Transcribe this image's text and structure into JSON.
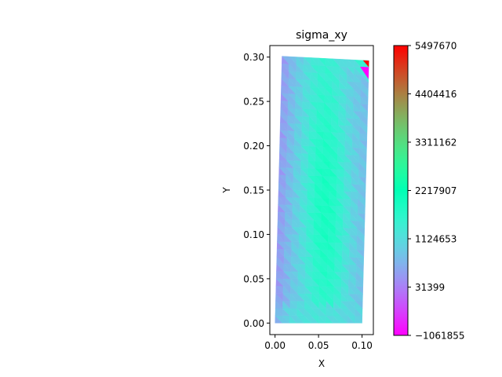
{
  "chart_data": {
    "type": "heatmap",
    "title": "sigma_xy",
    "xlabel": "X",
    "ylabel": "Y",
    "xlim": [
      -0.006,
      0.113
    ],
    "ylim": [
      -0.013,
      0.313
    ],
    "x_ticks": [
      0.0,
      0.05,
      0.1
    ],
    "x_tick_labels": [
      "0.00",
      "0.05",
      "0.10"
    ],
    "y_ticks": [
      0.0,
      0.05,
      0.1,
      0.15,
      0.2,
      0.25,
      0.3
    ],
    "y_tick_labels": [
      "0.00",
      "0.05",
      "0.10",
      "0.15",
      "0.20",
      "0.25",
      "0.30"
    ],
    "colormap": "rainbow",
    "grid": false,
    "domain_outline": [
      [
        0.0,
        0.0
      ],
      [
        0.1,
        0.0
      ],
      [
        0.108,
        0.296
      ],
      [
        0.008,
        0.301
      ]
    ],
    "mesh": {
      "nx": 12,
      "ny": 36
    },
    "colorbar": {
      "range": [
        -1061855,
        5497670
      ],
      "ticks": [
        -1061855,
        31399,
        1124653,
        2217907,
        3311162,
        4404416,
        5497670
      ],
      "tick_labels": [
        "−1061855",
        "31399",
        "1124653",
        "2217907",
        "3311162",
        "4404416",
        "5497670"
      ]
    },
    "field_estimates": {
      "background_value": 650000,
      "interior_peak_value": 1900000,
      "corner_max_value": 5497670,
      "corner_min_value": -1061855
    },
    "colors": {
      "cmap_stops": [
        "#8000ff",
        "#4b6efc",
        "#1ac7e6",
        "#66f7b5",
        "#b2f296",
        "#ffb360",
        "#ff0000"
      ]
    }
  }
}
